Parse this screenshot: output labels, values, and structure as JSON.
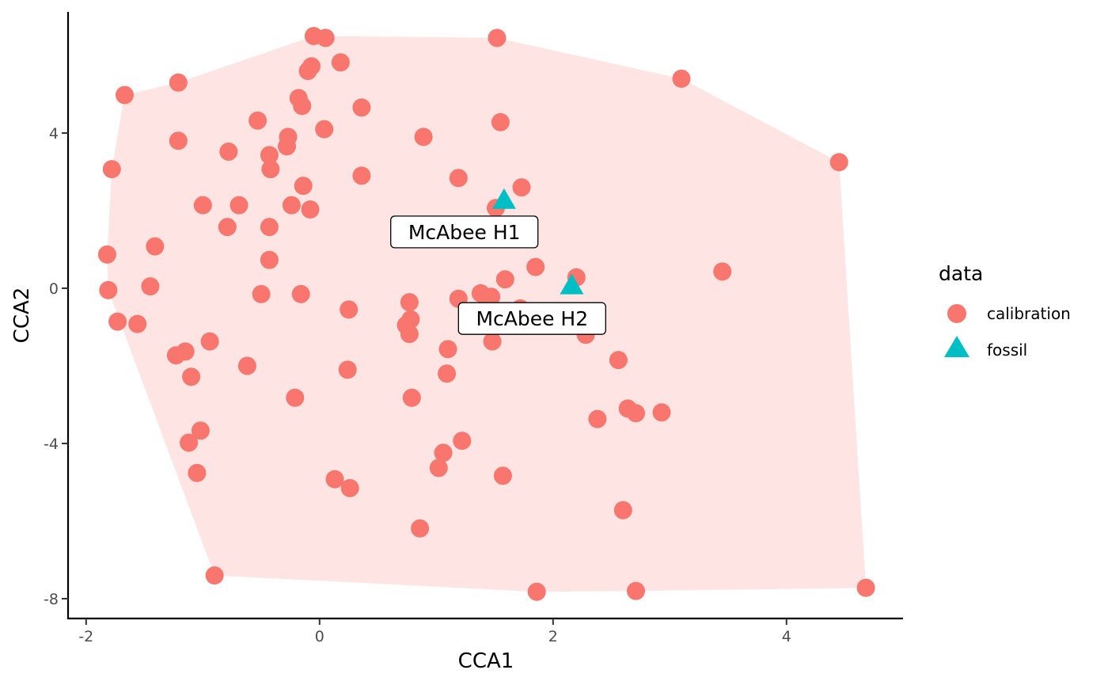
{
  "chart_data": {
    "type": "scatter",
    "xlabel": "CCA1",
    "ylabel": "CCA2",
    "xlim": [
      -2.07,
      4.96
    ],
    "ylim": [
      -8.5,
      6.9
    ],
    "x_ticks": [
      -2,
      0,
      2,
      4
    ],
    "y_ticks": [
      -8,
      -4,
      0,
      4
    ],
    "x_tick_labels": [
      "-2",
      "0",
      "2",
      "4"
    ],
    "y_tick_labels": [
      "-8",
      "-4",
      "0",
      "4"
    ],
    "grid": false,
    "legend": {
      "title": "data",
      "placement": "right",
      "entries": [
        {
          "label": "calibration",
          "shape": "circle",
          "color": "#F8766D"
        },
        {
          "label": "fossil",
          "shape": "triangle",
          "color": "#00BFC4"
        }
      ]
    },
    "hull": {
      "color": "#F8766D",
      "opacity": 0.2,
      "vertices": [
        [
          -0.05,
          6.5
        ],
        [
          1.52,
          6.45
        ],
        [
          3.1,
          5.4
        ],
        [
          4.45,
          3.25
        ],
        [
          4.68,
          -7.72
        ],
        [
          2.71,
          -7.8
        ],
        [
          1.86,
          -7.82
        ],
        [
          -0.9,
          -7.4
        ],
        [
          -1.81,
          -0.05
        ],
        [
          -1.82,
          0.87
        ],
        [
          -1.78,
          3.07
        ],
        [
          -1.67,
          4.98
        ],
        [
          -1.21,
          5.3
        ]
      ]
    },
    "series": [
      {
        "name": "calibration",
        "marker": "circle",
        "color": "#F8766D",
        "points": [
          [
            -0.05,
            6.5
          ],
          [
            0.05,
            6.45
          ],
          [
            1.52,
            6.45
          ],
          [
            0.18,
            5.82
          ],
          [
            -0.07,
            5.72
          ],
          [
            -0.1,
            5.6
          ],
          [
            3.1,
            5.4
          ],
          [
            -1.21,
            5.3
          ],
          [
            -1.67,
            4.98
          ],
          [
            -0.18,
            4.9
          ],
          [
            -0.15,
            4.7
          ],
          [
            0.36,
            4.66
          ],
          [
            -0.53,
            4.32
          ],
          [
            1.55,
            4.28
          ],
          [
            0.04,
            4.1
          ],
          [
            -0.27,
            3.9
          ],
          [
            0.89,
            3.9
          ],
          [
            -1.21,
            3.8
          ],
          [
            -0.28,
            3.66
          ],
          [
            -0.78,
            3.52
          ],
          [
            -0.43,
            3.43
          ],
          [
            4.45,
            3.25
          ],
          [
            -0.42,
            3.07
          ],
          [
            -1.78,
            3.07
          ],
          [
            0.36,
            2.9
          ],
          [
            1.19,
            2.84
          ],
          [
            -0.14,
            2.64
          ],
          [
            1.73,
            2.6
          ],
          [
            -1.0,
            2.14
          ],
          [
            -0.69,
            2.14
          ],
          [
            -0.24,
            2.14
          ],
          [
            -0.08,
            2.03
          ],
          [
            1.51,
            2.07
          ],
          [
            -0.79,
            1.58
          ],
          [
            -0.43,
            1.58
          ],
          [
            -1.41,
            1.08
          ],
          [
            -1.82,
            0.87
          ],
          [
            -0.43,
            0.73
          ],
          [
            1.85,
            0.55
          ],
          [
            3.45,
            0.43
          ],
          [
            2.2,
            0.28
          ],
          [
            1.59,
            0.23
          ],
          [
            -1.45,
            0.05
          ],
          [
            -1.81,
            -0.05
          ],
          [
            -0.5,
            -0.15
          ],
          [
            -0.16,
            -0.15
          ],
          [
            1.38,
            -0.13
          ],
          [
            1.47,
            -0.22
          ],
          [
            1.19,
            -0.27
          ],
          [
            0.77,
            -0.36
          ],
          [
            1.72,
            -0.52
          ],
          [
            0.25,
            -0.55
          ],
          [
            0.78,
            -0.8
          ],
          [
            -1.73,
            -0.86
          ],
          [
            0.74,
            -0.95
          ],
          [
            -1.56,
            -0.92
          ],
          [
            0.77,
            -1.18
          ],
          [
            2.28,
            -1.2
          ],
          [
            1.48,
            -1.37
          ],
          [
            -0.94,
            -1.37
          ],
          [
            1.1,
            -1.57
          ],
          [
            -1.15,
            -1.63
          ],
          [
            -1.23,
            -1.73
          ],
          [
            2.56,
            -1.85
          ],
          [
            -0.62,
            -2.0
          ],
          [
            0.24,
            -2.1
          ],
          [
            1.09,
            -2.2
          ],
          [
            -1.1,
            -2.28
          ],
          [
            -0.21,
            -2.82
          ],
          [
            0.79,
            -2.82
          ],
          [
            2.64,
            -3.1
          ],
          [
            2.71,
            -3.22
          ],
          [
            2.93,
            -3.2
          ],
          [
            2.38,
            -3.37
          ],
          [
            -1.02,
            -3.67
          ],
          [
            1.22,
            -3.93
          ],
          [
            -1.12,
            -3.98
          ],
          [
            1.06,
            -4.24
          ],
          [
            1.02,
            -4.63
          ],
          [
            -1.05,
            -4.76
          ],
          [
            0.13,
            -4.92
          ],
          [
            1.57,
            -4.83
          ],
          [
            0.26,
            -5.15
          ],
          [
            2.6,
            -5.72
          ],
          [
            0.86,
            -6.19
          ],
          [
            -0.9,
            -7.4
          ],
          [
            4.68,
            -7.72
          ],
          [
            2.71,
            -7.8
          ],
          [
            1.86,
            -7.82
          ]
        ]
      },
      {
        "name": "fossil",
        "marker": "triangle",
        "color": "#00BFC4",
        "points": [
          [
            1.58,
            2.25
          ],
          [
            2.16,
            0.05
          ]
        ]
      }
    ],
    "annotations": [
      {
        "text": "McAbee H1",
        "x": 1.24,
        "y": 1.45
      },
      {
        "text": "McAbee H2",
        "x": 1.82,
        "y": -0.78
      }
    ]
  }
}
